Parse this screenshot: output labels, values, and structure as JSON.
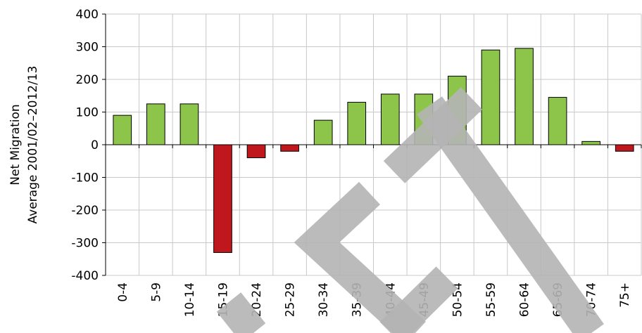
{
  "chart_data": {
    "type": "bar",
    "y_label": [
      "Net Migration",
      "Average 2001/02–2012/13"
    ],
    "categories": [
      "0-4",
      "5-9",
      "10-14",
      "15-19",
      "20-24",
      "25-29",
      "30-34",
      "35-39",
      "40-44",
      "45-49",
      "50-54",
      "55-59",
      "60-64",
      "65-69",
      "70-74",
      "75+"
    ],
    "values": [
      90,
      125,
      125,
      -330,
      -40,
      -20,
      75,
      130,
      155,
      155,
      210,
      290,
      295,
      145,
      10,
      -20
    ],
    "positive_color": "#8dc54b",
    "negative_color": "#c0171d",
    "ylim": [
      -400,
      400
    ],
    "yticks": [
      -400,
      -300,
      -200,
      -100,
      0,
      100,
      200,
      300,
      400
    ],
    "grid": true
  }
}
